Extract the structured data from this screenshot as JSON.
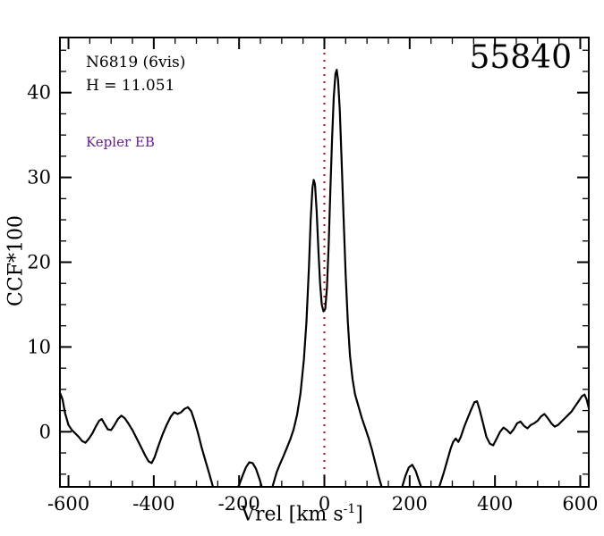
{
  "labels": {
    "object_name": "N6819 (6vis)",
    "h_mag": "H = 11.051",
    "classification": "Kepler EB",
    "classification_color": "#6a1b9a",
    "target_id": "55840",
    "xlabel_prefix": "Vrel [km s",
    "xlabel_sup": "-1",
    "xlabel_suffix": "]",
    "ylabel": "CCF*100"
  },
  "chart_data": {
    "type": "line",
    "title": "55840",
    "xlabel": "Vrel [km s⁻¹]",
    "ylabel": "CCF*100",
    "xlim": [
      -620,
      620
    ],
    "ylim": [
      -6.5,
      46.5
    ],
    "x_major_ticks": [
      -600,
      -400,
      -200,
      0,
      200,
      400,
      600
    ],
    "x_minor_step": 50,
    "y_major_ticks": [
      0,
      10,
      20,
      30,
      40
    ],
    "y_minor_step": 2.5,
    "grid": false,
    "legend": "none",
    "vline": {
      "x": 0,
      "color": "#cc0000",
      "style": "dotted"
    },
    "annotations": [
      {
        "text": "N6819 (6vis)",
        "x": -560,
        "y": 43,
        "color": "#000000"
      },
      {
        "text": "H = 11.051",
        "x": -560,
        "y": 40.5,
        "color": "#000000"
      },
      {
        "text": "Kepler EB",
        "x": -560,
        "y": 34,
        "color": "#6a1b9a"
      },
      {
        "text": "55840",
        "x": 540,
        "y": 43,
        "color": "#000000"
      }
    ],
    "series": [
      {
        "name": "CCF",
        "color": "#000000",
        "points": [
          [
            -620,
            4.6
          ],
          [
            -614,
            3.8
          ],
          [
            -608,
            2.2
          ],
          [
            -600,
            0.8
          ],
          [
            -592,
            0.2
          ],
          [
            -584,
            -0.2
          ],
          [
            -576,
            -0.6
          ],
          [
            -568,
            -1.1
          ],
          [
            -560,
            -1.3
          ],
          [
            -552,
            -0.8
          ],
          [
            -544,
            -0.2
          ],
          [
            -536,
            0.6
          ],
          [
            -528,
            1.3
          ],
          [
            -522,
            1.5
          ],
          [
            -515,
            0.9
          ],
          [
            -508,
            0.3
          ],
          [
            -500,
            0.2
          ],
          [
            -492,
            0.8
          ],
          [
            -484,
            1.5
          ],
          [
            -476,
            1.9
          ],
          [
            -468,
            1.6
          ],
          [
            -460,
            1.0
          ],
          [
            -450,
            0.2
          ],
          [
            -440,
            -0.8
          ],
          [
            -430,
            -1.8
          ],
          [
            -420,
            -2.8
          ],
          [
            -412,
            -3.5
          ],
          [
            -405,
            -3.7
          ],
          [
            -398,
            -3.0
          ],
          [
            -390,
            -1.8
          ],
          [
            -380,
            -0.4
          ],
          [
            -370,
            0.8
          ],
          [
            -360,
            1.8
          ],
          [
            -352,
            2.3
          ],
          [
            -344,
            2.1
          ],
          [
            -336,
            2.3
          ],
          [
            -328,
            2.7
          ],
          [
            -320,
            2.9
          ],
          [
            -312,
            2.4
          ],
          [
            -304,
            1.2
          ],
          [
            -296,
            -0.2
          ],
          [
            -288,
            -1.8
          ],
          [
            -280,
            -3.2
          ],
          [
            -272,
            -4.6
          ],
          [
            -264,
            -6.0
          ],
          [
            -256,
            -7.5
          ],
          [
            -248,
            -8.5
          ],
          [
            -240,
            -9.0
          ],
          [
            -230,
            -8.8
          ],
          [
            -220,
            -8.0
          ],
          [
            -210,
            -7.2
          ],
          [
            -200,
            -6.3
          ],
          [
            -192,
            -5.2
          ],
          [
            -184,
            -4.2
          ],
          [
            -176,
            -3.6
          ],
          [
            -168,
            -3.7
          ],
          [
            -160,
            -4.4
          ],
          [
            -152,
            -5.6
          ],
          [
            -144,
            -7.0
          ],
          [
            -136,
            -8.0
          ],
          [
            -128,
            -7.5
          ],
          [
            -120,
            -6.2
          ],
          [
            -112,
            -4.8
          ],
          [
            -104,
            -3.8
          ],
          [
            -96,
            -2.9
          ],
          [
            -88,
            -1.9
          ],
          [
            -80,
            -0.9
          ],
          [
            -72,
            0.3
          ],
          [
            -64,
            2.0
          ],
          [
            -56,
            4.5
          ],
          [
            -48,
            8.5
          ],
          [
            -42,
            13.0
          ],
          [
            -36,
            19.5
          ],
          [
            -32,
            25.0
          ],
          [
            -28,
            28.8
          ],
          [
            -25,
            29.7
          ],
          [
            -22,
            29.2
          ],
          [
            -18,
            26.0
          ],
          [
            -14,
            21.5
          ],
          [
            -10,
            17.5
          ],
          [
            -6,
            15.0
          ],
          [
            -2,
            14.2
          ],
          [
            2,
            14.5
          ],
          [
            6,
            17.0
          ],
          [
            10,
            22.0
          ],
          [
            14,
            28.5
          ],
          [
            18,
            34.5
          ],
          [
            22,
            39.5
          ],
          [
            26,
            42.2
          ],
          [
            29,
            42.7
          ],
          [
            32,
            41.5
          ],
          [
            36,
            38.0
          ],
          [
            40,
            32.5
          ],
          [
            45,
            25.5
          ],
          [
            50,
            18.5
          ],
          [
            55,
            13.0
          ],
          [
            60,
            9.0
          ],
          [
            66,
            6.2
          ],
          [
            72,
            4.4
          ],
          [
            80,
            3.0
          ],
          [
            88,
            1.6
          ],
          [
            96,
            0.4
          ],
          [
            104,
            -0.8
          ],
          [
            112,
            -2.2
          ],
          [
            120,
            -3.8
          ],
          [
            128,
            -5.4
          ],
          [
            136,
            -6.8
          ],
          [
            144,
            -7.8
          ],
          [
            152,
            -8.4
          ],
          [
            162,
            -8.6
          ],
          [
            172,
            -8.0
          ],
          [
            182,
            -6.6
          ],
          [
            190,
            -5.2
          ],
          [
            198,
            -4.2
          ],
          [
            206,
            -3.9
          ],
          [
            214,
            -4.6
          ],
          [
            222,
            -5.8
          ],
          [
            230,
            -7.0
          ],
          [
            240,
            -8.0
          ],
          [
            250,
            -8.3
          ],
          [
            260,
            -7.6
          ],
          [
            270,
            -6.4
          ],
          [
            280,
            -4.8
          ],
          [
            288,
            -3.4
          ],
          [
            296,
            -2.0
          ],
          [
            302,
            -1.2
          ],
          [
            308,
            -0.8
          ],
          [
            314,
            -1.2
          ],
          [
            320,
            -0.6
          ],
          [
            328,
            0.6
          ],
          [
            336,
            1.6
          ],
          [
            344,
            2.6
          ],
          [
            352,
            3.5
          ],
          [
            358,
            3.6
          ],
          [
            364,
            2.6
          ],
          [
            372,
            1.0
          ],
          [
            380,
            -0.6
          ],
          [
            388,
            -1.4
          ],
          [
            396,
            -1.6
          ],
          [
            404,
            -0.8
          ],
          [
            412,
            0.0
          ],
          [
            420,
            0.5
          ],
          [
            428,
            0.2
          ],
          [
            436,
            -0.2
          ],
          [
            444,
            0.3
          ],
          [
            452,
            1.0
          ],
          [
            460,
            1.2
          ],
          [
            468,
            0.7
          ],
          [
            476,
            0.4
          ],
          [
            484,
            0.8
          ],
          [
            492,
            1.0
          ],
          [
            500,
            1.3
          ],
          [
            508,
            1.8
          ],
          [
            516,
            2.1
          ],
          [
            524,
            1.6
          ],
          [
            532,
            1.0
          ],
          [
            540,
            0.6
          ],
          [
            548,
            0.8
          ],
          [
            556,
            1.2
          ],
          [
            564,
            1.6
          ],
          [
            572,
            2.0
          ],
          [
            580,
            2.4
          ],
          [
            588,
            3.0
          ],
          [
            596,
            3.6
          ],
          [
            604,
            4.2
          ],
          [
            610,
            4.4
          ],
          [
            615,
            3.8
          ],
          [
            620,
            2.8
          ]
        ]
      }
    ]
  }
}
